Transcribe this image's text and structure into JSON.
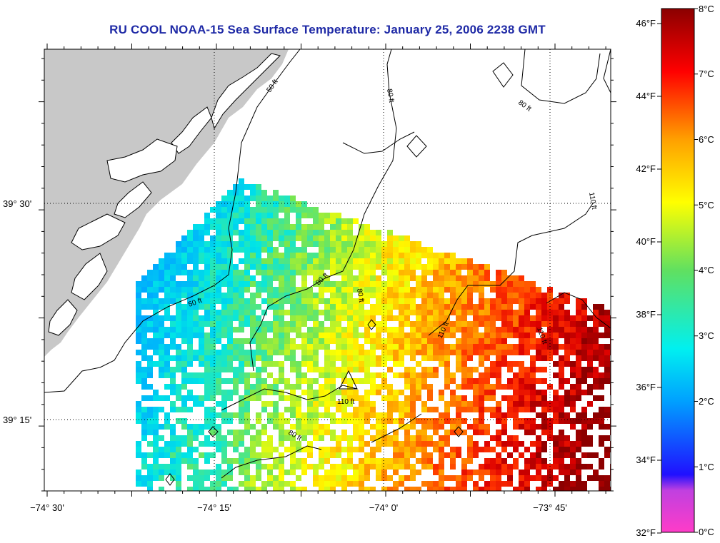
{
  "title": "RU COOL  NOAA-15  Sea Surface Temperature:  January 25, 2006 2238 GMT",
  "axes": {
    "lon_labels": [
      "−74° 30'",
      "−74° 15'",
      "−74° 0'",
      "−73° 45'"
    ],
    "lat_labels": [
      "39° 30'",
      "39° 15'"
    ]
  },
  "contours": [
    {
      "label": "50 ft"
    },
    {
      "label": "80 ft"
    },
    {
      "label": "110 ft"
    }
  ],
  "colorbar": {
    "fahrenheit": [
      "46°F",
      "44°F",
      "42°F",
      "40°F",
      "38°F",
      "36°F",
      "34°F",
      "32°F"
    ],
    "celsius": [
      "8°C",
      "7°C",
      "6°C",
      "5°C",
      "4°C",
      "3°C",
      "2°C",
      "1°C",
      "0°C"
    ],
    "range_c": [
      0,
      8
    ]
  },
  "colors": {
    "land": "#c8c8c8",
    "title": "#1f2aa6"
  }
}
